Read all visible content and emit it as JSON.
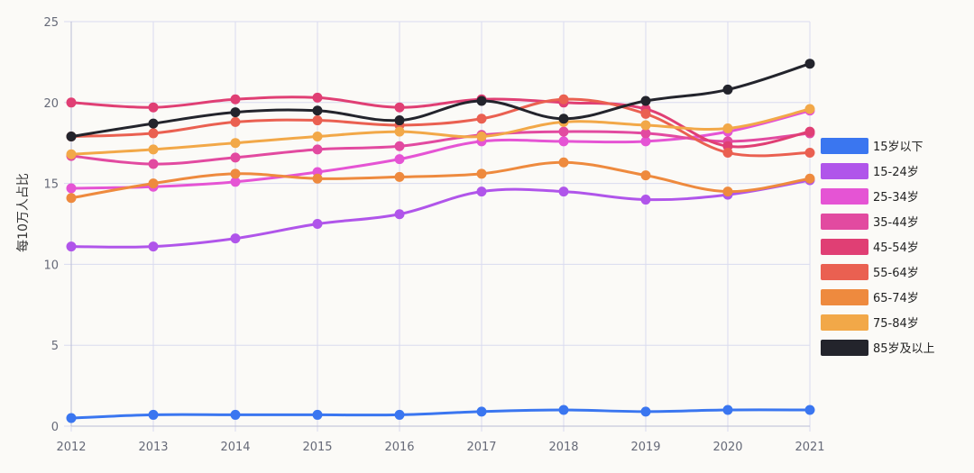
{
  "chart_data": {
    "type": "line",
    "title": "",
    "xlabel": "",
    "ylabel": "每10万人占比",
    "x": [
      "2012",
      "2013",
      "2014",
      "2015",
      "2016",
      "2017",
      "2018",
      "2019",
      "2020",
      "2021"
    ],
    "ylim": [
      0,
      25
    ],
    "yticks": [
      0,
      5,
      10,
      15,
      20,
      25
    ],
    "grid": true,
    "legend_position": "right",
    "series": [
      {
        "name": "15岁以下",
        "color": "#3a76f0",
        "values": [
          0.5,
          0.7,
          0.7,
          0.7,
          0.7,
          0.9,
          1.0,
          0.9,
          1.0,
          1.0
        ]
      },
      {
        "name": "15-24岁",
        "color": "#b055ea",
        "values": [
          11.1,
          11.1,
          11.6,
          12.5,
          13.1,
          14.5,
          14.5,
          14.0,
          14.3,
          15.2
        ]
      },
      {
        "name": "25-34岁",
        "color": "#e554d4",
        "values": [
          14.7,
          14.8,
          15.1,
          15.7,
          16.5,
          17.6,
          17.6,
          17.6,
          18.2,
          19.5
        ]
      },
      {
        "name": "35-44岁",
        "color": "#e24aa0",
        "values": [
          16.7,
          16.2,
          16.6,
          17.1,
          17.3,
          18.0,
          18.2,
          18.1,
          17.6,
          18.1
        ]
      },
      {
        "name": "45-54岁",
        "color": "#e03f74",
        "values": [
          20.0,
          19.7,
          20.2,
          20.3,
          19.7,
          20.2,
          20.0,
          19.6,
          17.3,
          18.2
        ]
      },
      {
        "name": "55-64岁",
        "color": "#ea6051",
        "values": [
          17.9,
          18.1,
          18.8,
          18.9,
          18.6,
          19.0,
          20.2,
          19.3,
          16.9,
          16.9
        ]
      },
      {
        "name": "65-74岁",
        "color": "#ee8a3e",
        "values": [
          14.1,
          15.0,
          15.6,
          15.3,
          15.4,
          15.6,
          16.3,
          15.5,
          14.5,
          15.3
        ]
      },
      {
        "name": "75-84岁",
        "color": "#f2a848",
        "values": [
          16.8,
          17.1,
          17.5,
          17.9,
          18.2,
          17.9,
          18.8,
          18.6,
          18.4,
          19.6
        ]
      },
      {
        "name": "85岁及以上",
        "color": "#23242c",
        "values": [
          17.9,
          18.7,
          19.4,
          19.5,
          18.9,
          20.1,
          19.0,
          20.1,
          20.8,
          22.4
        ]
      }
    ]
  }
}
